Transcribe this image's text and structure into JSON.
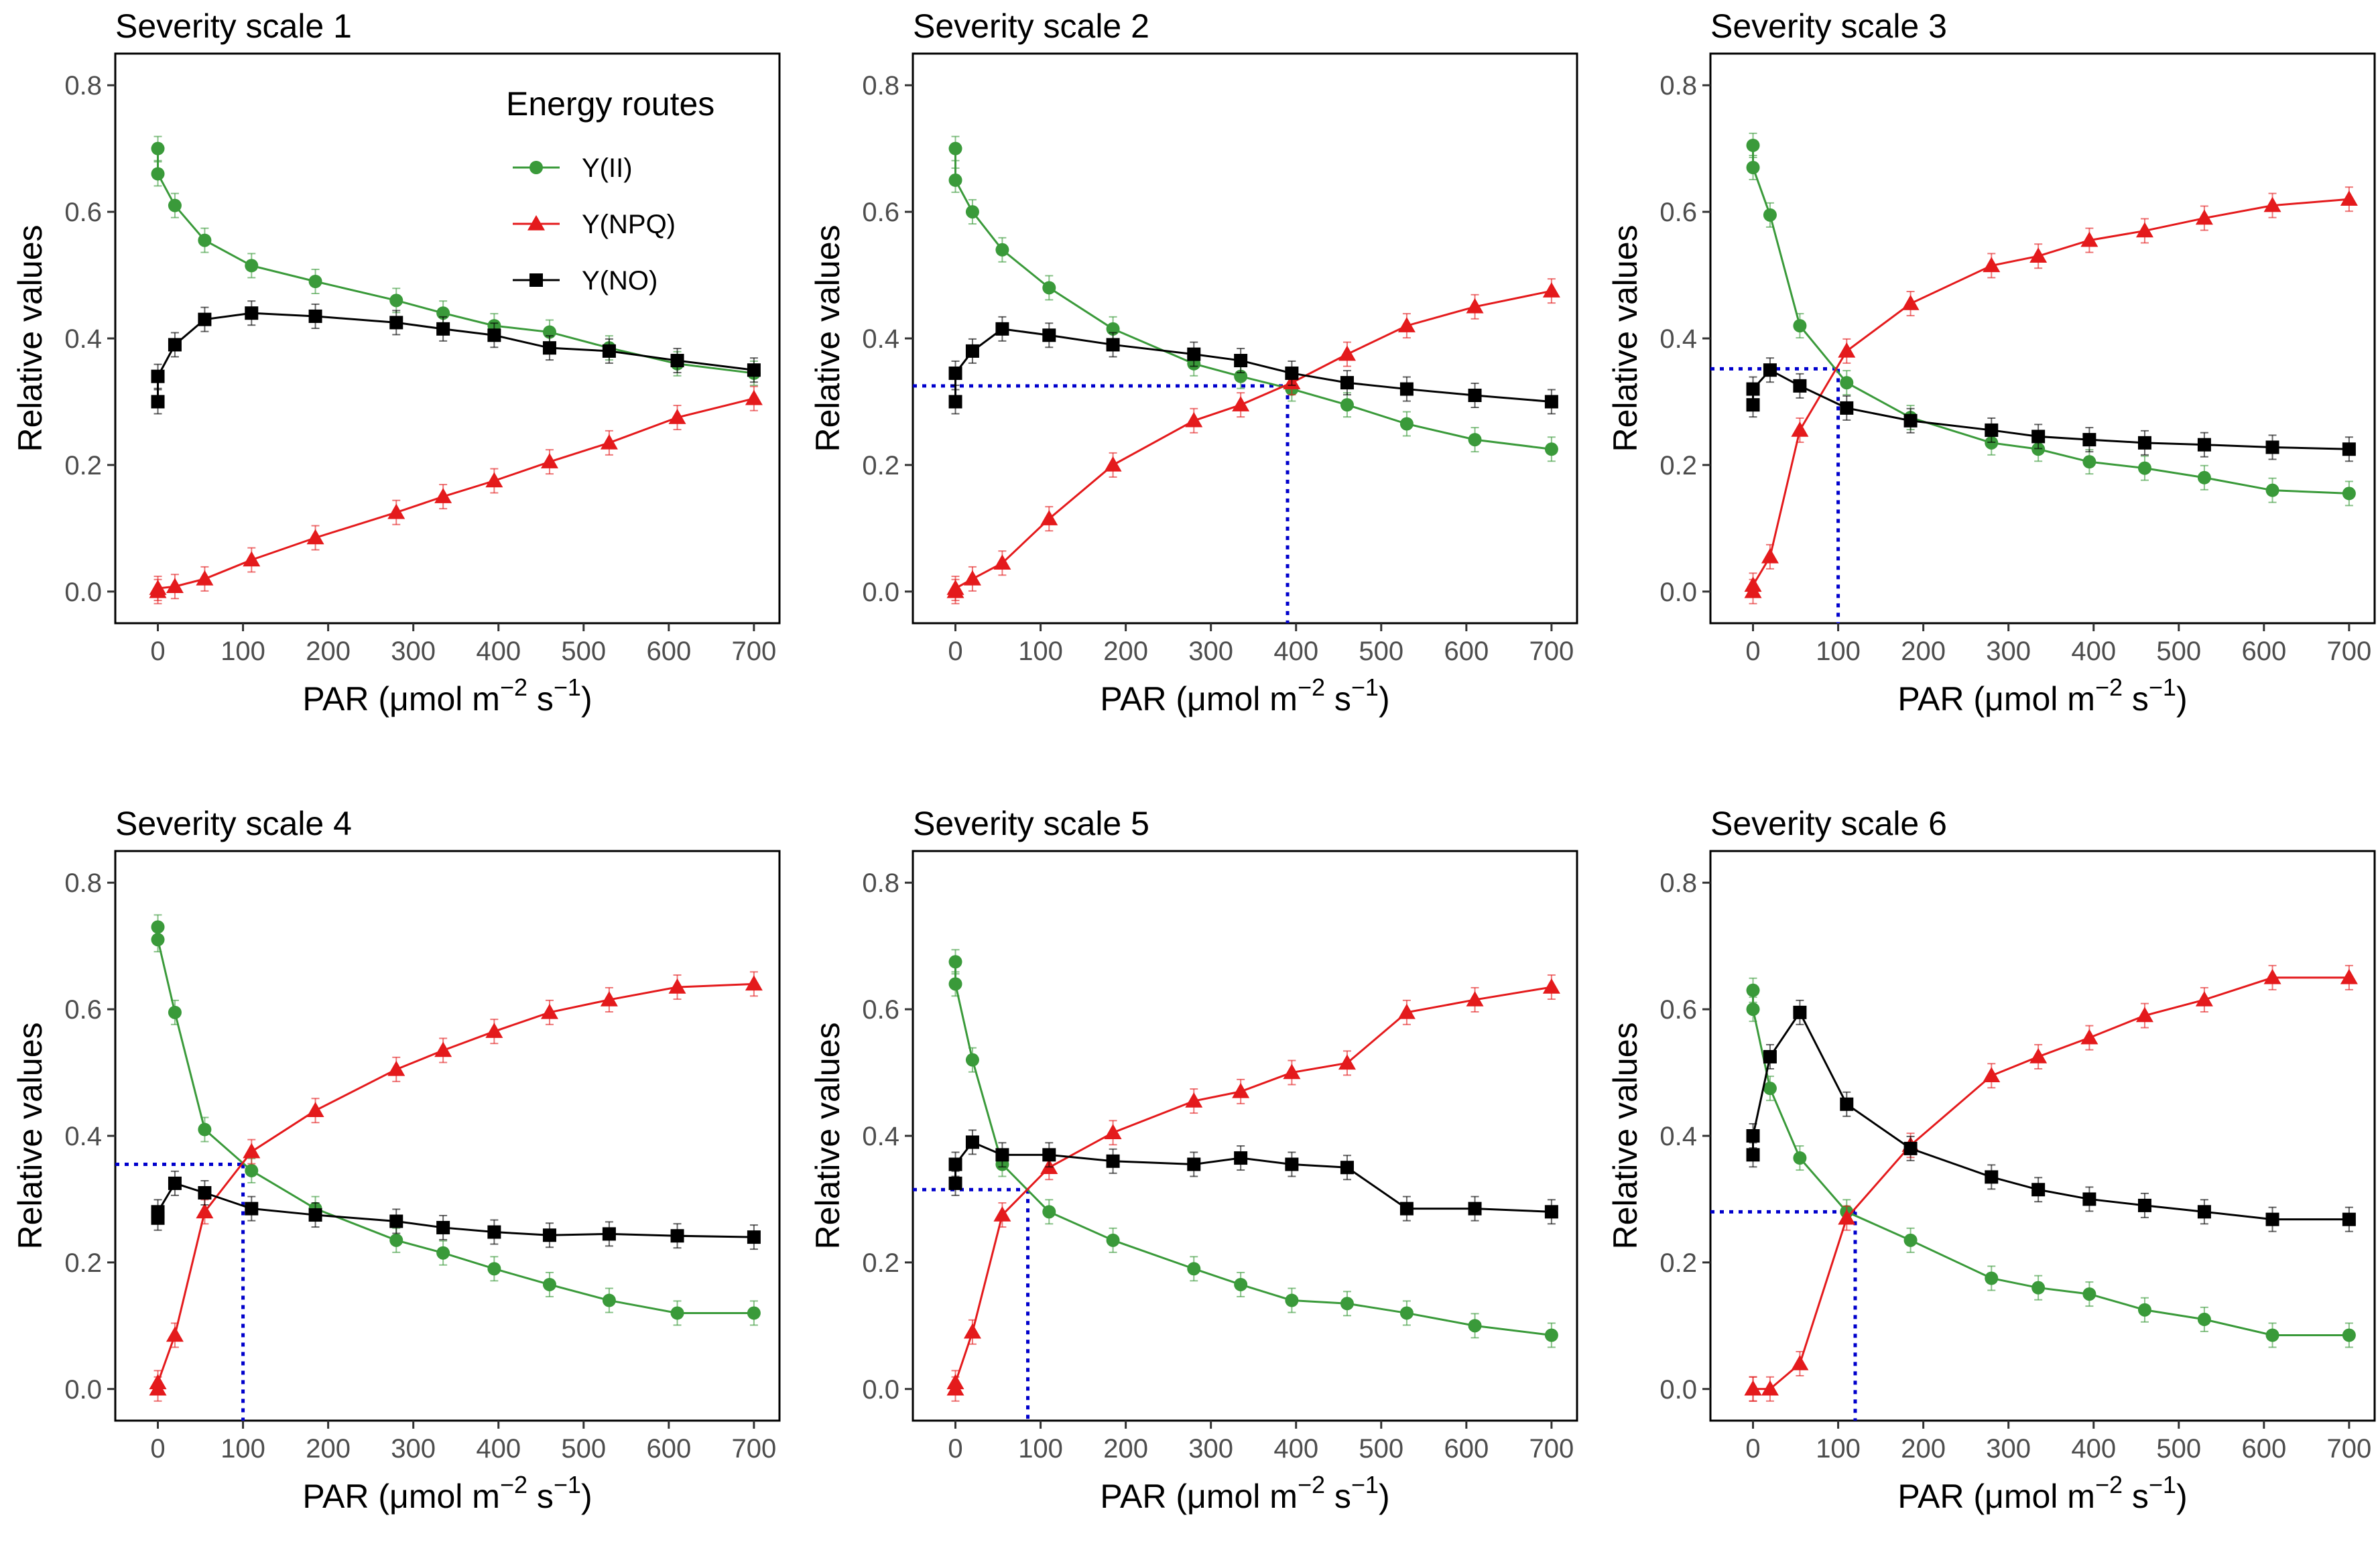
{
  "figure": {
    "legend_title": "Energy routes",
    "y_axis_label": "Relative values",
    "x_axis_label": "PAR",
    "x_axis_unit": "μmol m^-2 s^-1"
  },
  "chart_data": [
    {
      "type": "line",
      "title": "Severity scale 1",
      "xlabel": "PAR (μmol m^-2 s^-1)",
      "ylabel": "Relative values",
      "xlim": [
        -50,
        730
      ],
      "ylim": [
        -0.05,
        0.85
      ],
      "xticks": [
        0,
        100,
        200,
        300,
        400,
        500,
        600,
        700
      ],
      "yticks": [
        0.0,
        0.2,
        0.4,
        0.6,
        0.8
      ],
      "x": [
        0,
        0,
        20,
        55,
        110,
        185,
        280,
        335,
        395,
        460,
        530,
        610,
        700
      ],
      "series": [
        {
          "name": "Y(II)",
          "marker": "circle",
          "color": "#3a9a3a",
          "values": [
            0.7,
            0.66,
            0.61,
            0.555,
            0.515,
            0.49,
            0.46,
            0.44,
            0.42,
            0.41,
            0.385,
            0.36,
            0.345
          ]
        },
        {
          "name": "Y(NPQ)",
          "marker": "triangle",
          "color": "#e41a1c",
          "values": [
            0.0,
            0.005,
            0.008,
            0.02,
            0.05,
            0.085,
            0.125,
            0.15,
            0.175,
            0.205,
            0.235,
            0.275,
            0.305
          ]
        },
        {
          "name": "Y(NO)",
          "marker": "square",
          "color": "#000000",
          "values": [
            0.3,
            0.34,
            0.39,
            0.43,
            0.44,
            0.435,
            0.425,
            0.415,
            0.405,
            0.385,
            0.38,
            0.365,
            0.35
          ]
        }
      ],
      "legend": "top-right",
      "crossover": null
    },
    {
      "type": "line",
      "title": "Severity scale 2",
      "xlabel": "PAR (μmol m^-2 s^-1)",
      "ylabel": "Relative values",
      "xlim": [
        -50,
        730
      ],
      "ylim": [
        -0.05,
        0.85
      ],
      "xticks": [
        0,
        100,
        200,
        300,
        400,
        500,
        600,
        700
      ],
      "yticks": [
        0.0,
        0.2,
        0.4,
        0.6,
        0.8
      ],
      "x": [
        0,
        0,
        20,
        55,
        110,
        185,
        280,
        335,
        395,
        460,
        530,
        610,
        700
      ],
      "series": [
        {
          "name": "Y(II)",
          "marker": "circle",
          "color": "#3a9a3a",
          "values": [
            0.7,
            0.65,
            0.6,
            0.54,
            0.48,
            0.415,
            0.36,
            0.34,
            0.32,
            0.295,
            0.265,
            0.24,
            0.225
          ]
        },
        {
          "name": "Y(NPQ)",
          "marker": "triangle",
          "color": "#e41a1c",
          "values": [
            0.0,
            0.005,
            0.02,
            0.045,
            0.115,
            0.2,
            0.27,
            0.295,
            0.33,
            0.375,
            0.42,
            0.45,
            0.475
          ]
        },
        {
          "name": "Y(NO)",
          "marker": "square",
          "color": "#000000",
          "values": [
            0.3,
            0.345,
            0.38,
            0.415,
            0.405,
            0.39,
            0.375,
            0.365,
            0.345,
            0.33,
            0.32,
            0.31,
            0.3
          ]
        }
      ],
      "crossover": {
        "x": 390,
        "y": 0.325
      }
    },
    {
      "type": "line",
      "title": "Severity scale 3",
      "xlabel": "PAR (μmol m^-2 s^-1)",
      "ylabel": "Relative values",
      "xlim": [
        -50,
        730
      ],
      "ylim": [
        -0.05,
        0.85
      ],
      "xticks": [
        0,
        100,
        200,
        300,
        400,
        500,
        600,
        700
      ],
      "yticks": [
        0.0,
        0.2,
        0.4,
        0.6,
        0.8
      ],
      "x": [
        0,
        0,
        20,
        55,
        110,
        185,
        280,
        335,
        395,
        460,
        530,
        610,
        700
      ],
      "series": [
        {
          "name": "Y(II)",
          "marker": "circle",
          "color": "#3a9a3a",
          "values": [
            0.705,
            0.67,
            0.595,
            0.42,
            0.33,
            0.275,
            0.235,
            0.225,
            0.205,
            0.195,
            0.18,
            0.16,
            0.155
          ]
        },
        {
          "name": "Y(NPQ)",
          "marker": "triangle",
          "color": "#e41a1c",
          "values": [
            0.0,
            0.01,
            0.055,
            0.255,
            0.38,
            0.455,
            0.515,
            0.53,
            0.555,
            0.57,
            0.59,
            0.61,
            0.62
          ]
        },
        {
          "name": "Y(NO)",
          "marker": "square",
          "color": "#000000",
          "values": [
            0.295,
            0.32,
            0.35,
            0.325,
            0.29,
            0.27,
            0.255,
            0.245,
            0.24,
            0.235,
            0.232,
            0.228,
            0.225
          ]
        }
      ],
      "crossover": {
        "x": 100,
        "y": 0.352
      }
    },
    {
      "type": "line",
      "title": "Severity scale 4",
      "xlabel": "PAR (μmol m^-2 s^-1)",
      "ylabel": "Relative values",
      "xlim": [
        -50,
        730
      ],
      "ylim": [
        -0.05,
        0.85
      ],
      "xticks": [
        0,
        100,
        200,
        300,
        400,
        500,
        600,
        700
      ],
      "yticks": [
        0.0,
        0.2,
        0.4,
        0.6,
        0.8
      ],
      "x": [
        0,
        0,
        20,
        55,
        110,
        185,
        280,
        335,
        395,
        460,
        530,
        610,
        700
      ],
      "series": [
        {
          "name": "Y(II)",
          "marker": "circle",
          "color": "#3a9a3a",
          "values": [
            0.73,
            0.71,
            0.595,
            0.41,
            0.345,
            0.285,
            0.235,
            0.215,
            0.19,
            0.165,
            0.14,
            0.12,
            0.12
          ]
        },
        {
          "name": "Y(NPQ)",
          "marker": "triangle",
          "color": "#e41a1c",
          "values": [
            0.0,
            0.01,
            0.085,
            0.28,
            0.375,
            0.44,
            0.505,
            0.535,
            0.565,
            0.595,
            0.615,
            0.635,
            0.64
          ]
        },
        {
          "name": "Y(NO)",
          "marker": "square",
          "color": "#000000",
          "values": [
            0.27,
            0.28,
            0.325,
            0.31,
            0.285,
            0.275,
            0.265,
            0.255,
            0.248,
            0.243,
            0.245,
            0.242,
            0.24
          ]
        }
      ],
      "crossover": {
        "x": 100,
        "y": 0.355
      }
    },
    {
      "type": "line",
      "title": "Severity scale 5",
      "xlabel": "PAR (μmol m^-2 s^-1)",
      "ylabel": "Relative values",
      "xlim": [
        -50,
        730
      ],
      "ylim": [
        -0.05,
        0.85
      ],
      "xticks": [
        0,
        100,
        200,
        300,
        400,
        500,
        600,
        700
      ],
      "yticks": [
        0.0,
        0.2,
        0.4,
        0.6,
        0.8
      ],
      "x": [
        0,
        0,
        20,
        55,
        110,
        185,
        280,
        335,
        395,
        460,
        530,
        610,
        700
      ],
      "series": [
        {
          "name": "Y(II)",
          "marker": "circle",
          "color": "#3a9a3a",
          "values": [
            0.675,
            0.64,
            0.52,
            0.355,
            0.28,
            0.235,
            0.19,
            0.165,
            0.14,
            0.135,
            0.12,
            0.1,
            0.085
          ]
        },
        {
          "name": "Y(NPQ)",
          "marker": "triangle",
          "color": "#e41a1c",
          "values": [
            0.0,
            0.01,
            0.09,
            0.275,
            0.35,
            0.405,
            0.455,
            0.47,
            0.5,
            0.515,
            0.595,
            0.615,
            0.635
          ]
        },
        {
          "name": "Y(NO)",
          "marker": "square",
          "color": "#000000",
          "values": [
            0.325,
            0.355,
            0.39,
            0.37,
            0.37,
            0.36,
            0.355,
            0.365,
            0.355,
            0.35,
            0.285,
            0.285,
            0.28
          ]
        }
      ],
      "crossover": {
        "x": 85,
        "y": 0.315
      }
    },
    {
      "type": "line",
      "title": "Severity scale 6",
      "xlabel": "PAR (μmol m^-2 s^-1)",
      "ylabel": "Relative values",
      "xlim": [
        -50,
        730
      ],
      "ylim": [
        -0.05,
        0.85
      ],
      "xticks": [
        0,
        100,
        200,
        300,
        400,
        500,
        600,
        700
      ],
      "yticks": [
        0.0,
        0.2,
        0.4,
        0.6,
        0.8
      ],
      "x": [
        0,
        0,
        20,
        55,
        110,
        185,
        280,
        335,
        395,
        460,
        530,
        610,
        700
      ],
      "series": [
        {
          "name": "Y(II)",
          "marker": "circle",
          "color": "#3a9a3a",
          "values": [
            0.63,
            0.6,
            0.475,
            0.365,
            0.28,
            0.235,
            0.175,
            0.16,
            0.15,
            0.125,
            0.11,
            0.085,
            0.085
          ]
        },
        {
          "name": "Y(NPQ)",
          "marker": "triangle",
          "color": "#e41a1c",
          "values": [
            0.0,
            0.0,
            0.0,
            0.04,
            0.27,
            0.385,
            0.495,
            0.525,
            0.555,
            0.59,
            0.615,
            0.65,
            0.65
          ]
        },
        {
          "name": "Y(NO)",
          "marker": "square",
          "color": "#000000",
          "values": [
            0.37,
            0.4,
            0.525,
            0.595,
            0.45,
            0.38,
            0.335,
            0.315,
            0.3,
            0.29,
            0.28,
            0.268,
            0.268
          ]
        }
      ],
      "crossover": {
        "x": 120,
        "y": 0.28
      }
    }
  ]
}
